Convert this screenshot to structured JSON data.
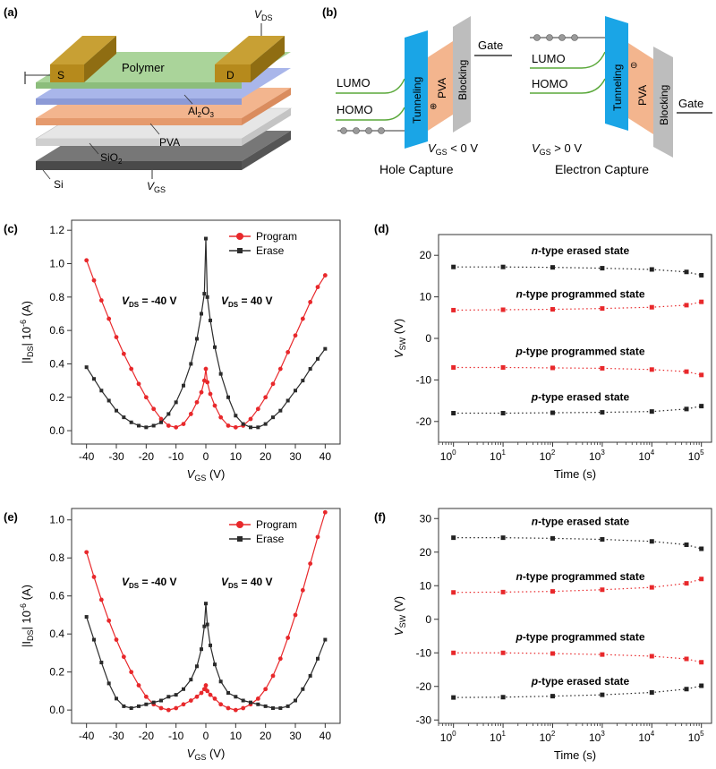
{
  "panels": {
    "a": {
      "label": "(a)",
      "layers": [
        "Polymer",
        "Al",
        "2",
        "O",
        "3",
        "PVA",
        "SiO",
        "2",
        "Si"
      ],
      "source": "S",
      "drain": "D",
      "vds_main": "V",
      "vds_sub": "DS",
      "vgs_main": "V",
      "vgs_sub": "GS"
    },
    "b": {
      "label": "(b)",
      "left": {
        "gate": "Gate",
        "lumo": "LUMO",
        "homo": "HOMO",
        "tunneling": "Tunneling",
        "pva": "PVA",
        "blocking": "Blocking",
        "charge_sign": "⊕",
        "condition_main": "V",
        "condition_sub": "GS",
        "condition_rest": " < 0 V",
        "caption": "Hole Capture"
      },
      "right": {
        "gate": "Gate",
        "lumo": "LUMO",
        "homo": "HOMO",
        "tunneling": "Tunneling",
        "pva": "PVA",
        "blocking": "Blocking",
        "charge_sign": "⊖",
        "condition_main": "V",
        "condition_sub": "GS",
        "condition_rest": " > 0 V",
        "caption": "Electron Capture"
      }
    }
  },
  "chart_data": [
    {
      "id": "c",
      "panel_label": "(c)",
      "type": "line",
      "xlabel_main": "V",
      "xlabel_sub": "GS",
      "xlabel_rest": " (V)",
      "ylabel_a": "|I",
      "ylabel_sub": "DS",
      "ylabel_b": "| 10",
      "ylabel_sup": "-6",
      "ylabel_c": " (A)",
      "xlim": [
        -45,
        45
      ],
      "ylim": [
        -0.08,
        1.26
      ],
      "xticks": [
        -40,
        -30,
        -20,
        -10,
        0,
        10,
        20,
        30,
        40
      ],
      "yticks": [
        0.0,
        0.2,
        0.4,
        0.6,
        0.8,
        1.0,
        1.2
      ],
      "ytick_labels": [
        "0.0",
        "0.2",
        "0.4",
        "0.6",
        "0.8",
        "1.0",
        "1.2"
      ],
      "legend": [
        "Program",
        "Erase"
      ],
      "annotation_left": {
        "main": "V",
        "sub": "DS",
        "rest": " = -40 V"
      },
      "annotation_right": {
        "main": "V",
        "sub": "DS",
        "rest": " = 40 V"
      },
      "series": [
        {
          "name": "Program",
          "color": "#e8282b",
          "x": [
            -40,
            -37.5,
            -35,
            -32.5,
            -30,
            -27.5,
            -25,
            -22.5,
            -20,
            -17.5,
            -15,
            -12.5,
            -10,
            -7.5,
            -5,
            -3,
            -1.5,
            -0.5,
            0,
            0.5,
            1.5,
            3,
            5,
            7.5,
            10,
            12.5,
            15,
            17.5,
            20,
            22.5,
            25,
            27.5,
            30,
            32.5,
            35,
            37.5,
            40
          ],
          "y": [
            1.02,
            0.9,
            0.78,
            0.67,
            0.56,
            0.46,
            0.37,
            0.28,
            0.2,
            0.13,
            0.07,
            0.03,
            0.02,
            0.04,
            0.1,
            0.17,
            0.23,
            0.3,
            0.37,
            0.29,
            0.22,
            0.15,
            0.08,
            0.03,
            0.02,
            0.03,
            0.07,
            0.13,
            0.2,
            0.28,
            0.37,
            0.47,
            0.57,
            0.67,
            0.77,
            0.86,
            0.93
          ]
        },
        {
          "name": "Erase",
          "color": "#2b2b2b",
          "x": [
            -40,
            -37.5,
            -35,
            -32.5,
            -30,
            -27.5,
            -25,
            -22.5,
            -20,
            -17.5,
            -15,
            -12.5,
            -10,
            -7.5,
            -5,
            -3,
            -1.5,
            -0.5,
            0,
            0.5,
            1.5,
            3,
            5,
            7.5,
            10,
            12.5,
            15,
            17.5,
            20,
            22.5,
            25,
            27.5,
            30,
            32.5,
            35,
            37.5,
            40
          ],
          "y": [
            0.38,
            0.31,
            0.24,
            0.18,
            0.12,
            0.08,
            0.05,
            0.03,
            0.02,
            0.03,
            0.05,
            0.1,
            0.17,
            0.27,
            0.4,
            0.55,
            0.7,
            0.82,
            1.15,
            0.8,
            0.66,
            0.5,
            0.34,
            0.2,
            0.09,
            0.04,
            0.02,
            0.02,
            0.04,
            0.08,
            0.12,
            0.18,
            0.24,
            0.3,
            0.37,
            0.43,
            0.49
          ]
        }
      ]
    },
    {
      "id": "d",
      "panel_label": "(d)",
      "type": "scatter",
      "xlabel_main": "Time (s)",
      "ylabel_main": "V",
      "ylabel_sub": "SW",
      "ylabel_rest": " (V)",
      "xscale": "log",
      "xlim": [
        0.5,
        160000
      ],
      "ylim": [
        -25,
        25
      ],
      "xticks": [
        1,
        10,
        100,
        1000,
        10000,
        100000
      ],
      "xtick_base": "10",
      "xtick_exps": [
        "0",
        "1",
        "2",
        "3",
        "4",
        "5"
      ],
      "yticks": [
        -20,
        -10,
        0,
        10,
        20
      ],
      "ytick_labels": [
        "-20",
        "-10",
        "0",
        "10",
        "20"
      ],
      "series": [
        {
          "name": "n-type erased state",
          "label_italic": "n",
          "label_rest": "-type erased state",
          "color": "#222222",
          "x": [
            1,
            10,
            100,
            1000,
            10000,
            50000,
            100000
          ],
          "y": [
            17.2,
            17.2,
            17.1,
            16.9,
            16.6,
            16.0,
            15.2
          ]
        },
        {
          "name": "n-type programmed state",
          "label_italic": "n",
          "label_rest": "-type programmed state",
          "color": "#e8282b",
          "x": [
            1,
            10,
            100,
            1000,
            10000,
            50000,
            100000
          ],
          "y": [
            6.8,
            6.9,
            7.0,
            7.2,
            7.5,
            8.0,
            8.8
          ]
        },
        {
          "name": "p-type programmed state",
          "label_italic": "p",
          "label_rest": "-type programmed state",
          "color": "#e8282b",
          "x": [
            1,
            10,
            100,
            1000,
            10000,
            50000,
            100000
          ],
          "y": [
            -7.0,
            -7.0,
            -7.1,
            -7.2,
            -7.5,
            -8.0,
            -8.8
          ]
        },
        {
          "name": "p-type erased state",
          "label_italic": "p",
          "label_rest": "-type erased state",
          "color": "#222222",
          "x": [
            1,
            10,
            100,
            1000,
            10000,
            50000,
            100000
          ],
          "y": [
            -18.0,
            -18.0,
            -17.9,
            -17.8,
            -17.6,
            -17.0,
            -16.3
          ]
        }
      ]
    },
    {
      "id": "e",
      "panel_label": "(e)",
      "type": "line",
      "xlabel_main": "V",
      "xlabel_sub": "GS",
      "xlabel_rest": " (V)",
      "ylabel_a": "|I",
      "ylabel_sub": "DS",
      "ylabel_b": "| 10",
      "ylabel_sup": "-6",
      "ylabel_c": " (A)",
      "xlim": [
        -45,
        45
      ],
      "ylim": [
        -0.07,
        1.06
      ],
      "xticks": [
        -40,
        -30,
        -20,
        -10,
        0,
        10,
        20,
        30,
        40
      ],
      "yticks": [
        0.0,
        0.2,
        0.4,
        0.6,
        0.8,
        1.0
      ],
      "ytick_labels": [
        "0.0",
        "0.2",
        "0.4",
        "0.6",
        "0.8",
        "1.0"
      ],
      "legend": [
        "Program",
        "Erase"
      ],
      "annotation_left": {
        "main": "V",
        "sub": "DS",
        "rest": " = -40 V"
      },
      "annotation_right": {
        "main": "V",
        "sub": "DS",
        "rest": " = 40 V"
      },
      "series": [
        {
          "name": "Program",
          "color": "#e8282b",
          "x": [
            -40,
            -37.5,
            -35,
            -32.5,
            -30,
            -27.5,
            -25,
            -22.5,
            -20,
            -17.5,
            -15,
            -12.5,
            -10,
            -7.5,
            -5,
            -3,
            -1.5,
            -0.5,
            0,
            0.5,
            1.5,
            3,
            5,
            7.5,
            10,
            12.5,
            15,
            17.5,
            20,
            22.5,
            25,
            27.5,
            30,
            32.5,
            35,
            37.5,
            40
          ],
          "y": [
            0.83,
            0.7,
            0.58,
            0.47,
            0.37,
            0.28,
            0.2,
            0.13,
            0.07,
            0.03,
            0.01,
            0.0,
            0.01,
            0.03,
            0.05,
            0.07,
            0.09,
            0.11,
            0.13,
            0.1,
            0.08,
            0.06,
            0.03,
            0.01,
            0.0,
            0.01,
            0.03,
            0.06,
            0.11,
            0.18,
            0.27,
            0.38,
            0.5,
            0.63,
            0.77,
            0.91,
            1.04
          ]
        },
        {
          "name": "Erase",
          "color": "#2b2b2b",
          "x": [
            -40,
            -37.5,
            -35,
            -32.5,
            -30,
            -27.5,
            -25,
            -22.5,
            -20,
            -17.5,
            -15,
            -12.5,
            -10,
            -7.5,
            -5,
            -3,
            -1.5,
            -0.5,
            0,
            0.5,
            1.5,
            3,
            5,
            7.5,
            10,
            12.5,
            15,
            17.5,
            20,
            22.5,
            25,
            27.5,
            30,
            32.5,
            35,
            37.5,
            40
          ],
          "y": [
            0.49,
            0.37,
            0.25,
            0.14,
            0.06,
            0.02,
            0.01,
            0.02,
            0.03,
            0.04,
            0.05,
            0.07,
            0.08,
            0.11,
            0.16,
            0.23,
            0.32,
            0.44,
            0.56,
            0.45,
            0.34,
            0.24,
            0.15,
            0.09,
            0.07,
            0.05,
            0.04,
            0.03,
            0.02,
            0.01,
            0.01,
            0.02,
            0.05,
            0.11,
            0.18,
            0.27,
            0.37
          ]
        }
      ]
    },
    {
      "id": "f",
      "panel_label": "(f)",
      "type": "scatter",
      "xlabel_main": "Time (s)",
      "ylabel_main": "V",
      "ylabel_sub": "SW",
      "ylabel_rest": " (V)",
      "xscale": "log",
      "xlim": [
        0.5,
        160000
      ],
      "ylim": [
        -31,
        33
      ],
      "xticks": [
        1,
        10,
        100,
        1000,
        10000,
        100000
      ],
      "xtick_base": "10",
      "xtick_exps": [
        "0",
        "1",
        "2",
        "3",
        "4",
        "5"
      ],
      "yticks": [
        -30,
        -20,
        -10,
        0,
        10,
        20,
        30
      ],
      "ytick_labels": [
        "-30",
        "-20",
        "-10",
        "0",
        "10",
        "20",
        "30"
      ],
      "series": [
        {
          "name": "n-type erased state",
          "label_italic": "n",
          "label_rest": "-type erased state",
          "color": "#222222",
          "x": [
            1,
            10,
            100,
            1000,
            10000,
            50000,
            100000
          ],
          "y": [
            24.3,
            24.3,
            24.1,
            23.8,
            23.2,
            22.2,
            21.0
          ]
        },
        {
          "name": "n-type programmed state",
          "label_italic": "n",
          "label_rest": "-type programmed state",
          "color": "#e8282b",
          "x": [
            1,
            10,
            100,
            1000,
            10000,
            50000,
            100000
          ],
          "y": [
            8.0,
            8.1,
            8.3,
            8.8,
            9.5,
            10.7,
            12.0
          ]
        },
        {
          "name": "p-type programmed state",
          "label_italic": "p",
          "label_rest": "-type programmed state",
          "color": "#e8282b",
          "x": [
            1,
            10,
            100,
            1000,
            10000,
            50000,
            100000
          ],
          "y": [
            -10.0,
            -10.0,
            -10.2,
            -10.5,
            -11.0,
            -11.8,
            -12.8
          ]
        },
        {
          "name": "p-type erased state",
          "label_italic": "p",
          "label_rest": "-type erased state",
          "color": "#222222",
          "x": [
            1,
            10,
            100,
            1000,
            10000,
            50000,
            100000
          ],
          "y": [
            -23.3,
            -23.2,
            -22.9,
            -22.5,
            -21.8,
            -20.8,
            -19.8
          ]
        }
      ]
    }
  ]
}
